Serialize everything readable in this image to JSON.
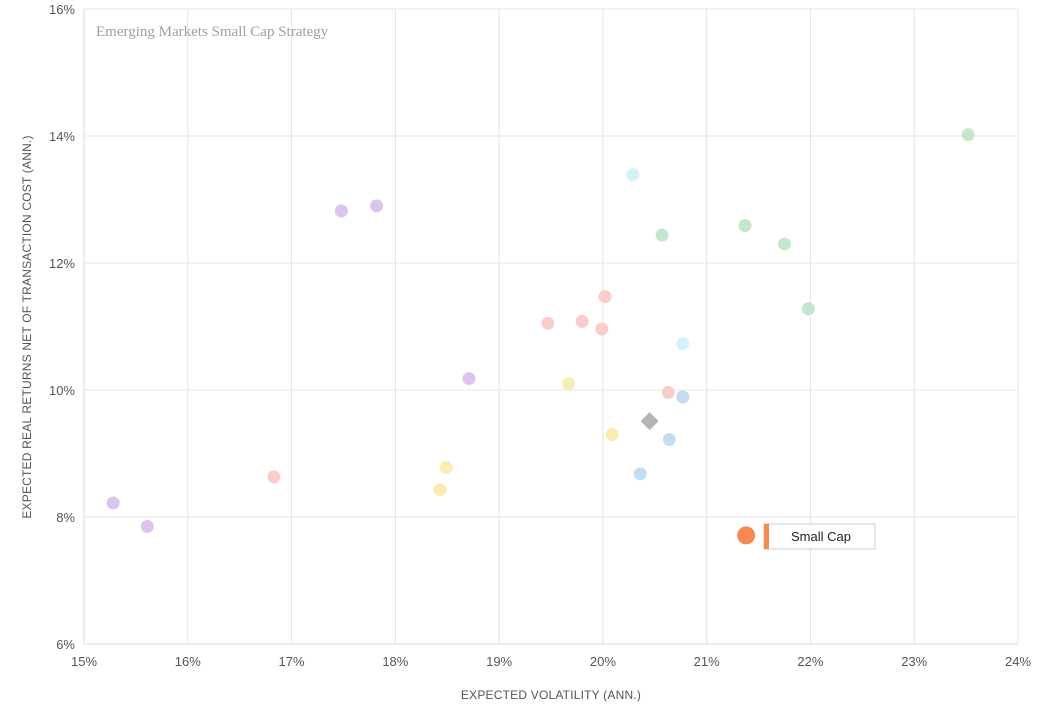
{
  "chart_data": {
    "type": "scatter",
    "title": "Emerging Markets Small Cap Strategy",
    "xlabel": "EXPECTED VOLATILITY (ANN.)",
    "ylabel": "EXPECTED REAL RETURNS NET OF TRANSACTION COST (ANN.)",
    "xlim": [
      15,
      24
    ],
    "ylim": [
      6,
      16
    ],
    "x_ticks": [
      "15%",
      "16%",
      "17%",
      "18%",
      "19%",
      "20%",
      "21%",
      "22%",
      "23%",
      "24%"
    ],
    "y_ticks": [
      "6%",
      "8%",
      "10%",
      "12%",
      "14%",
      "16%"
    ],
    "grid": true,
    "colors": {
      "purple": "#dcc4ec",
      "green": "#c4e6cc",
      "pink": "#f9cdc9",
      "yellow": "#fbecb4",
      "blue": "#c4dcf0",
      "cyan": "#d4f0f8",
      "diamond": "#b4b4b4",
      "highlight": "#f5894f",
      "tooltip_border": "#cccccc",
      "tooltip_accent": "#f5894f"
    },
    "series": [
      {
        "color_key": "purple",
        "points": [
          {
            "x": 15.28,
            "y": 8.22
          },
          {
            "x": 15.61,
            "y": 7.85
          },
          {
            "x": 17.48,
            "y": 12.82
          },
          {
            "x": 17.82,
            "y": 12.9
          },
          {
            "x": 18.71,
            "y": 10.18
          }
        ]
      },
      {
        "color_key": "green",
        "points": [
          {
            "x": 23.52,
            "y": 14.02
          },
          {
            "x": 21.37,
            "y": 12.59
          },
          {
            "x": 20.57,
            "y": 12.44
          },
          {
            "x": 21.75,
            "y": 12.3
          },
          {
            "x": 21.98,
            "y": 11.28
          }
        ]
      },
      {
        "color_key": "pink",
        "points": [
          {
            "x": 20.02,
            "y": 11.47
          },
          {
            "x": 19.47,
            "y": 11.05
          },
          {
            "x": 19.8,
            "y": 11.08
          },
          {
            "x": 19.99,
            "y": 10.96
          },
          {
            "x": 16.83,
            "y": 8.63
          },
          {
            "x": 20.63,
            "y": 9.96
          }
        ]
      },
      {
        "color_key": "yellow",
        "points": [
          {
            "x": 19.67,
            "y": 10.1
          },
          {
            "x": 20.09,
            "y": 9.3
          },
          {
            "x": 18.49,
            "y": 8.78
          },
          {
            "x": 18.43,
            "y": 8.43
          }
        ]
      },
      {
        "color_key": "blue",
        "points": [
          {
            "x": 20.77,
            "y": 9.89
          },
          {
            "x": 20.64,
            "y": 9.22
          },
          {
            "x": 20.36,
            "y": 8.68
          }
        ]
      },
      {
        "color_key": "cyan",
        "points": [
          {
            "x": 20.29,
            "y": 13.39
          },
          {
            "x": 20.77,
            "y": 10.73
          }
        ]
      }
    ],
    "diamond_point": {
      "x": 20.45,
      "y": 9.51
    },
    "highlight_point": {
      "x": 21.38,
      "y": 7.71,
      "label": "Small Cap"
    }
  }
}
